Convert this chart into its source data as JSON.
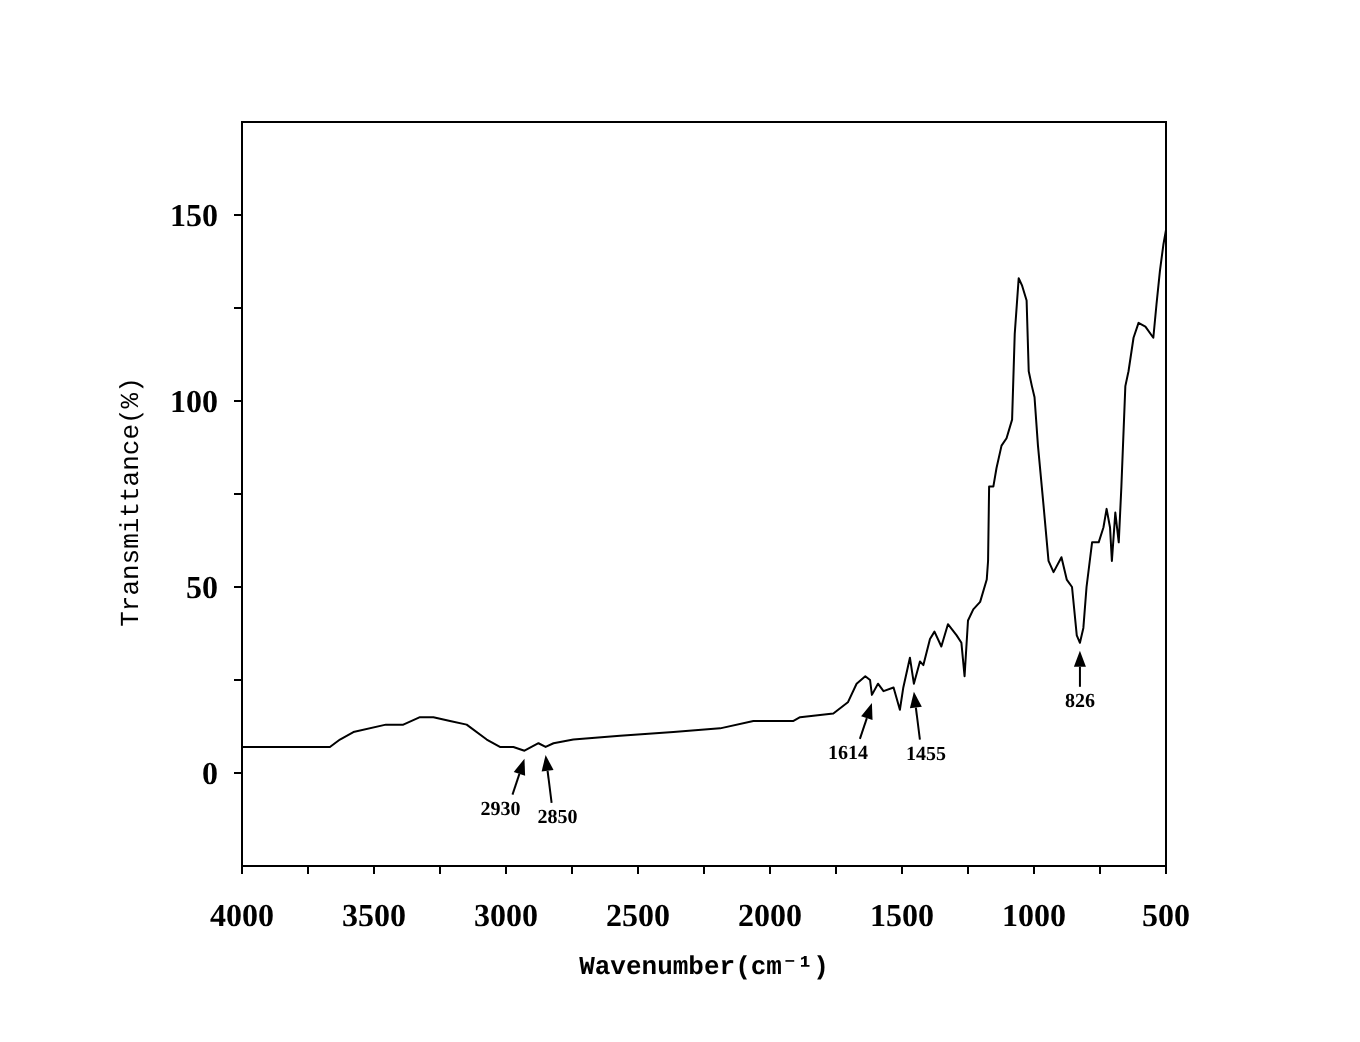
{
  "chart_data": {
    "type": "line",
    "xlabel": "Wavenumber(cm⁻¹)",
    "ylabel": "Transmittance(%)",
    "x": [
      4000,
      3818,
      3705,
      3667,
      3629,
      3578,
      3455,
      3389,
      3326,
      3275,
      3212,
      3149,
      3073,
      3023,
      2972,
      2930,
      2877,
      2850,
      2820,
      2745,
      2568,
      2366,
      2189,
      2063,
      1911,
      1886,
      1760,
      1705,
      1672,
      1639,
      1621,
      1614,
      1591,
      1570,
      1532,
      1508,
      1495,
      1470,
      1455,
      1432,
      1419,
      1394,
      1377,
      1351,
      1326,
      1293,
      1275,
      1263,
      1250,
      1230,
      1204,
      1179,
      1174,
      1170,
      1154,
      1142,
      1123,
      1104,
      1083,
      1073,
      1058,
      1045,
      1028,
      1020,
      1008,
      998,
      985,
      964,
      945,
      926,
      896,
      876,
      856,
      838,
      826,
      813,
      801,
      780,
      755,
      737,
      725,
      712,
      705,
      692,
      679,
      669,
      654,
      642,
      623,
      604,
      578,
      548,
      536,
      523,
      510,
      500
    ],
    "series": [
      {
        "color": "#000000",
        "values": [
          7,
          7,
          7,
          7,
          9,
          11,
          13,
          13,
          15,
          15,
          14,
          13,
          9,
          7,
          7,
          6,
          8,
          7,
          8,
          9,
          10,
          11,
          12,
          14,
          14,
          15,
          16,
          19,
          24,
          26,
          25,
          21,
          24,
          22,
          23,
          17,
          23,
          31,
          24,
          30,
          29,
          36,
          38,
          34,
          40,
          37,
          35,
          26,
          41,
          44,
          46,
          52,
          57,
          77,
          77,
          82,
          88,
          90,
          95,
          118,
          133,
          131,
          127,
          108,
          104,
          101,
          88,
          72,
          57,
          54,
          58,
          52,
          50,
          37,
          35,
          39,
          50,
          62,
          62,
          66,
          71,
          66,
          57,
          70,
          62,
          77,
          104,
          108,
          117,
          121,
          120,
          117,
          126,
          135,
          142,
          146
        ]
      }
    ],
    "xlim": [
      4000,
      500
    ],
    "ylim": [
      -25,
      175
    ],
    "xticks": [
      4000,
      {
        "value": 3750,
        "label": null
      },
      3500,
      {
        "value": 3250,
        "label": null
      },
      3000,
      {
        "value": 2750,
        "label": null
      },
      2500,
      {
        "value": 2250,
        "label": null
      },
      2000,
      {
        "value": 1750,
        "label": null
      },
      1500,
      {
        "value": 1250,
        "label": null
      },
      1000,
      {
        "value": 750,
        "label": null
      },
      500
    ],
    "yticks": [
      0,
      {
        "value": 25,
        "label": null
      },
      50,
      {
        "value": 75,
        "label": null
      },
      100,
      {
        "value": 125,
        "label": null
      },
      150
    ],
    "annotations": [
      {
        "text": "2930",
        "x": 2930,
        "y": 6
      },
      {
        "text": "2850",
        "x": 2850,
        "y": 7
      },
      {
        "text": "1614",
        "x": 1614,
        "y": 21
      },
      {
        "text": "1455",
        "x": 1455,
        "y": 24
      },
      {
        "text": "826",
        "x": 826,
        "y": 35
      }
    ]
  }
}
